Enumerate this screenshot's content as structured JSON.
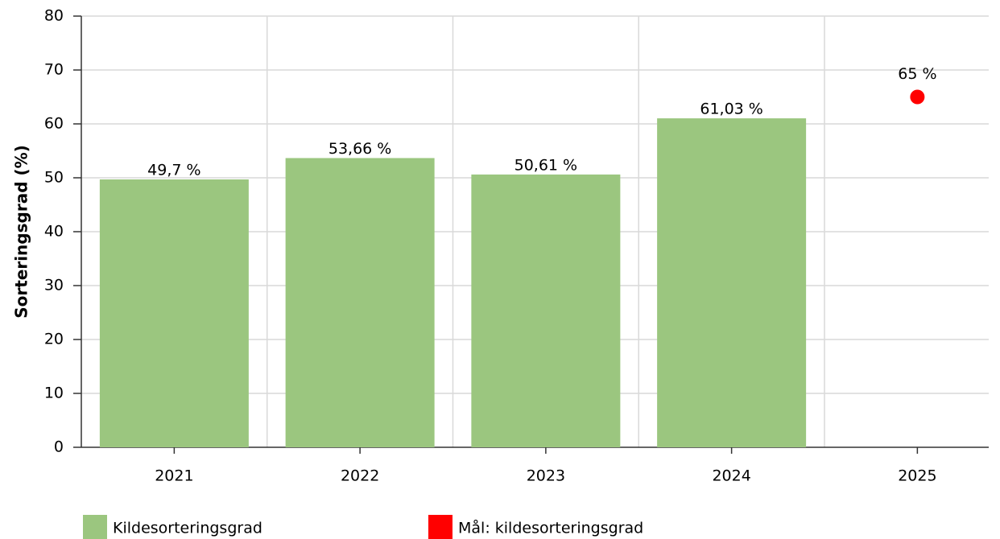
{
  "chart_data": {
    "type": "bar",
    "y_label": "Sorteringsgrad (%)",
    "categories": [
      "2021",
      "2022",
      "2023",
      "2024",
      "2025"
    ],
    "series": [
      {
        "name": "Kildesorteringsgrad",
        "type": "bar",
        "color": "#9bc67f",
        "values": [
          49.7,
          53.66,
          50.61,
          61.03,
          null
        ],
        "value_labels": [
          "49,7 %",
          "53,66 %",
          "50,61 %",
          "61,03 %",
          null
        ]
      },
      {
        "name": "Mål: kildesorteringsgrad",
        "type": "scatter",
        "color": "#ff0000",
        "values": [
          null,
          null,
          null,
          null,
          65
        ],
        "value_labels": [
          null,
          null,
          null,
          null,
          "65 %"
        ]
      }
    ],
    "ylim": [
      0,
      80
    ],
    "yticks": [
      0,
      10,
      20,
      30,
      40,
      50,
      60,
      70,
      80
    ],
    "grid": true
  }
}
